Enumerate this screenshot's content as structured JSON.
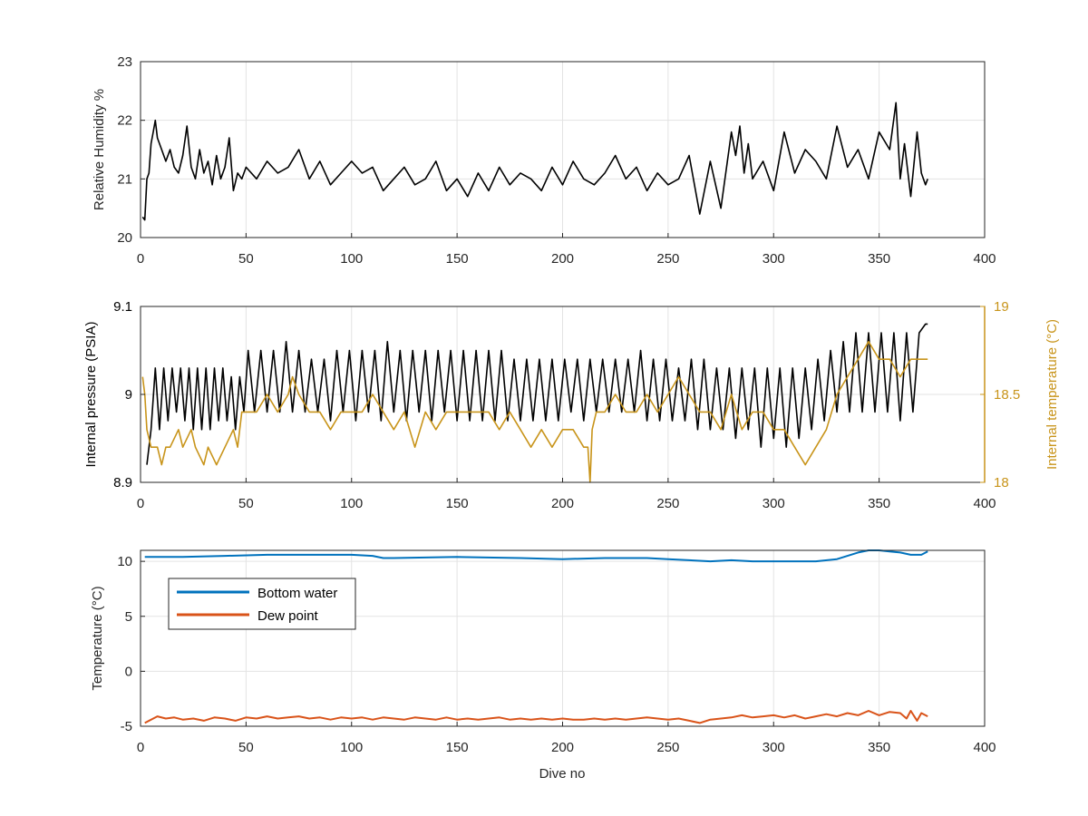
{
  "figure": {
    "background": "#ffffff"
  },
  "chart_data": [
    {
      "type": "line",
      "xlabel": "",
      "ylabel": "Relative Humidity %",
      "xlim": [
        0,
        400
      ],
      "ylim": [
        20,
        23
      ],
      "xticks": [
        0,
        50,
        100,
        150,
        200,
        250,
        300,
        350,
        400
      ],
      "xtick_labels": [
        "0",
        "50",
        "100",
        "150",
        "200",
        "250",
        "300",
        "350",
        "400"
      ],
      "yticks": [
        20,
        21,
        22,
        23
      ],
      "ytick_labels": [
        "20",
        "21",
        "22",
        "23"
      ],
      "grid": true,
      "series": [
        {
          "color": "#000000",
          "x": [
            1,
            2,
            3,
            4,
            5,
            6,
            7,
            8,
            10,
            12,
            14,
            16,
            18,
            20,
            22,
            24,
            26,
            28,
            30,
            32,
            34,
            36,
            38,
            40,
            42,
            44,
            46,
            48,
            50,
            55,
            60,
            65,
            70,
            75,
            80,
            85,
            90,
            95,
            100,
            105,
            110,
            115,
            120,
            125,
            130,
            135,
            140,
            145,
            150,
            155,
            160,
            165,
            170,
            175,
            180,
            185,
            190,
            195,
            200,
            205,
            210,
            215,
            220,
            225,
            230,
            235,
            240,
            245,
            250,
            255,
            260,
            265,
            270,
            275,
            280,
            282,
            284,
            286,
            288,
            290,
            295,
            300,
            305,
            310,
            315,
            320,
            325,
            330,
            335,
            340,
            345,
            350,
            355,
            358,
            360,
            362,
            365,
            368,
            370,
            372,
            373
          ],
          "y": [
            20.35,
            20.3,
            21.0,
            21.1,
            21.6,
            21.8,
            22.0,
            21.7,
            21.5,
            21.3,
            21.5,
            21.2,
            21.1,
            21.4,
            21.9,
            21.2,
            21.0,
            21.5,
            21.1,
            21.3,
            20.9,
            21.4,
            21.0,
            21.2,
            21.7,
            20.8,
            21.1,
            21.0,
            21.2,
            21.0,
            21.3,
            21.1,
            21.2,
            21.5,
            21.0,
            21.3,
            20.9,
            21.1,
            21.3,
            21.1,
            21.2,
            20.8,
            21.0,
            21.2,
            20.9,
            21.0,
            21.3,
            20.8,
            21.0,
            20.7,
            21.1,
            20.8,
            21.2,
            20.9,
            21.1,
            21.0,
            20.8,
            21.2,
            20.9,
            21.3,
            21.0,
            20.9,
            21.1,
            21.4,
            21.0,
            21.2,
            20.8,
            21.1,
            20.9,
            21.0,
            21.4,
            20.4,
            21.3,
            20.5,
            21.8,
            21.4,
            21.9,
            21.1,
            21.6,
            21.0,
            21.3,
            20.8,
            21.8,
            21.1,
            21.5,
            21.3,
            21.0,
            21.9,
            21.2,
            21.5,
            21.0,
            21.8,
            21.5,
            22.3,
            21.0,
            21.6,
            20.7,
            21.8,
            21.1,
            20.9,
            21.0
          ]
        }
      ]
    },
    {
      "type": "line",
      "xlabel": "",
      "ylabel": "Internal pressure (PSIA)",
      "ylabel_right": "Internal temperature (°C)",
      "xlim": [
        0,
        400
      ],
      "ylim": [
        8.9,
        9.1
      ],
      "ylim_right": [
        18,
        19
      ],
      "xticks": [
        0,
        50,
        100,
        150,
        200,
        250,
        300,
        350,
        400
      ],
      "xtick_labels": [
        "0",
        "50",
        "100",
        "150",
        "200",
        "250",
        "300",
        "350",
        "400"
      ],
      "yticks": [
        8.9,
        9.0,
        9.1
      ],
      "ytick_labels": [
        "8.9",
        "9",
        "9.1"
      ],
      "yticks_right": [
        18,
        18.5,
        19
      ],
      "ytick_labels_right": [
        "18",
        "18.5",
        "19"
      ],
      "grid": true,
      "right_axis_color": "#c8941a",
      "series": [
        {
          "axis": "left",
          "color": "#000000",
          "x": [
            3,
            5,
            7,
            9,
            11,
            13,
            15,
            17,
            19,
            21,
            23,
            25,
            27,
            29,
            31,
            33,
            35,
            37,
            39,
            41,
            43,
            45,
            47,
            49,
            51,
            54,
            57,
            60,
            63,
            66,
            69,
            72,
            75,
            78,
            81,
            84,
            87,
            90,
            93,
            96,
            99,
            102,
            105,
            108,
            111,
            114,
            117,
            120,
            123,
            126,
            129,
            132,
            135,
            138,
            141,
            144,
            147,
            150,
            153,
            156,
            159,
            162,
            165,
            168,
            171,
            174,
            177,
            180,
            183,
            186,
            189,
            192,
            195,
            198,
            201,
            204,
            207,
            210,
            213,
            216,
            219,
            222,
            225,
            228,
            231,
            234,
            237,
            240,
            243,
            246,
            249,
            252,
            255,
            258,
            261,
            264,
            267,
            270,
            273,
            276,
            279,
            282,
            285,
            288,
            291,
            294,
            297,
            300,
            303,
            306,
            309,
            312,
            315,
            318,
            321,
            324,
            327,
            330,
            333,
            336,
            339,
            342,
            345,
            348,
            351,
            354,
            357,
            360,
            363,
            366,
            369,
            372,
            373
          ],
          "y": [
            8.92,
            8.96,
            9.03,
            8.96,
            9.03,
            8.97,
            9.03,
            8.98,
            9.03,
            8.97,
            9.03,
            8.96,
            9.03,
            8.96,
            9.03,
            8.96,
            9.03,
            8.97,
            9.03,
            8.97,
            9.02,
            8.96,
            9.02,
            8.98,
            9.05,
            8.98,
            9.05,
            8.98,
            9.05,
            8.98,
            9.06,
            8.98,
            9.05,
            8.98,
            9.04,
            8.98,
            9.04,
            8.97,
            9.05,
            8.98,
            9.05,
            8.97,
            9.05,
            8.98,
            9.05,
            8.97,
            9.06,
            8.98,
            9.05,
            8.97,
            9.05,
            8.98,
            9.05,
            8.97,
            9.05,
            8.98,
            9.05,
            8.97,
            9.05,
            8.97,
            9.05,
            8.97,
            9.05,
            8.97,
            9.05,
            8.97,
            9.04,
            8.97,
            9.04,
            8.97,
            9.04,
            8.97,
            9.04,
            8.97,
            9.04,
            8.98,
            9.04,
            8.97,
            9.04,
            8.98,
            9.04,
            8.98,
            9.04,
            8.98,
            9.04,
            8.98,
            9.05,
            8.97,
            9.04,
            8.97,
            9.04,
            8.97,
            9.03,
            8.97,
            9.04,
            8.96,
            9.04,
            8.96,
            9.03,
            8.96,
            9.03,
            8.95,
            9.03,
            8.96,
            9.03,
            8.94,
            9.03,
            8.95,
            9.03,
            8.94,
            9.03,
            8.95,
            9.03,
            8.96,
            9.04,
            8.97,
            9.05,
            8.98,
            9.06,
            8.98,
            9.07,
            8.98,
            9.07,
            8.98,
            9.07,
            8.98,
            9.07,
            8.97,
            9.07,
            8.98,
            9.07,
            9.08,
            9.08
          ]
        },
        {
          "axis": "right",
          "color": "#c8941a",
          "x": [
            1,
            2,
            3,
            5,
            8,
            10,
            12,
            14,
            18,
            20,
            24,
            26,
            30,
            32,
            36,
            40,
            44,
            46,
            48,
            50,
            55,
            60,
            65,
            70,
            72,
            75,
            80,
            85,
            90,
            95,
            100,
            105,
            110,
            115,
            120,
            125,
            130,
            135,
            140,
            145,
            150,
            155,
            160,
            165,
            170,
            175,
            180,
            185,
            190,
            195,
            200,
            205,
            210,
            212,
            213,
            214,
            216,
            220,
            225,
            230,
            235,
            240,
            245,
            250,
            255,
            260,
            265,
            270,
            275,
            280,
            285,
            290,
            295,
            300,
            305,
            310,
            315,
            320,
            325,
            330,
            335,
            340,
            345,
            350,
            355,
            360,
            365,
            370,
            373
          ],
          "y": [
            18.6,
            18.5,
            18.3,
            18.2,
            18.2,
            18.1,
            18.2,
            18.2,
            18.3,
            18.2,
            18.3,
            18.2,
            18.1,
            18.2,
            18.1,
            18.2,
            18.3,
            18.2,
            18.4,
            18.4,
            18.4,
            18.5,
            18.4,
            18.5,
            18.6,
            18.5,
            18.4,
            18.4,
            18.3,
            18.4,
            18.4,
            18.4,
            18.5,
            18.4,
            18.3,
            18.4,
            18.2,
            18.4,
            18.3,
            18.4,
            18.4,
            18.4,
            18.4,
            18.4,
            18.3,
            18.4,
            18.3,
            18.2,
            18.3,
            18.2,
            18.3,
            18.3,
            18.2,
            18.2,
            18.0,
            18.3,
            18.4,
            18.4,
            18.5,
            18.4,
            18.4,
            18.5,
            18.4,
            18.5,
            18.6,
            18.5,
            18.4,
            18.4,
            18.3,
            18.5,
            18.3,
            18.4,
            18.4,
            18.3,
            18.3,
            18.2,
            18.1,
            18.2,
            18.3,
            18.5,
            18.6,
            18.7,
            18.8,
            18.7,
            18.7,
            18.6,
            18.7,
            18.7,
            18.7
          ]
        }
      ]
    },
    {
      "type": "line",
      "xlabel": "Dive no",
      "ylabel": "Temperature (°C)",
      "xlim": [
        0,
        400
      ],
      "ylim": [
        -5,
        11
      ],
      "xticks": [
        0,
        50,
        100,
        150,
        200,
        250,
        300,
        350,
        400
      ],
      "xtick_labels": [
        "0",
        "50",
        "100",
        "150",
        "200",
        "250",
        "300",
        "350",
        "400"
      ],
      "yticks": [
        -5,
        0,
        5,
        10
      ],
      "ytick_labels": [
        "-5",
        "0",
        "5",
        "10"
      ],
      "grid": true,
      "legend_position": "top-left",
      "series": [
        {
          "name": "Bottom water",
          "color": "#0072bd",
          "x": [
            2,
            20,
            40,
            60,
            80,
            100,
            110,
            115,
            120,
            150,
            180,
            200,
            220,
            240,
            250,
            260,
            270,
            280,
            290,
            300,
            310,
            320,
            330,
            340,
            345,
            350,
            355,
            360,
            365,
            370,
            373
          ],
          "y": [
            10.4,
            10.4,
            10.5,
            10.6,
            10.6,
            10.6,
            10.5,
            10.3,
            10.3,
            10.4,
            10.3,
            10.2,
            10.3,
            10.3,
            10.2,
            10.1,
            10.0,
            10.1,
            10.0,
            10.0,
            10.0,
            10.0,
            10.2,
            10.8,
            11.0,
            11.1,
            10.9,
            10.8,
            10.6,
            10.6,
            10.9
          ]
        },
        {
          "name": "Dew point",
          "color": "#d95319",
          "x": [
            2,
            5,
            8,
            12,
            16,
            20,
            25,
            30,
            35,
            40,
            45,
            50,
            55,
            60,
            65,
            70,
            75,
            80,
            85,
            90,
            95,
            100,
            105,
            110,
            115,
            120,
            125,
            130,
            135,
            140,
            145,
            150,
            155,
            160,
            165,
            170,
            175,
            180,
            185,
            190,
            195,
            200,
            205,
            210,
            215,
            220,
            225,
            230,
            235,
            240,
            245,
            250,
            255,
            260,
            265,
            270,
            275,
            280,
            285,
            290,
            295,
            300,
            305,
            310,
            315,
            320,
            325,
            330,
            335,
            340,
            345,
            350,
            355,
            360,
            363,
            365,
            368,
            370,
            373
          ],
          "y": [
            -4.7,
            -4.4,
            -4.1,
            -4.3,
            -4.2,
            -4.4,
            -4.3,
            -4.5,
            -4.2,
            -4.3,
            -4.5,
            -4.2,
            -4.3,
            -4.1,
            -4.3,
            -4.2,
            -4.1,
            -4.3,
            -4.2,
            -4.4,
            -4.2,
            -4.3,
            -4.2,
            -4.4,
            -4.2,
            -4.3,
            -4.4,
            -4.2,
            -4.3,
            -4.4,
            -4.2,
            -4.4,
            -4.3,
            -4.4,
            -4.3,
            -4.2,
            -4.4,
            -4.3,
            -4.4,
            -4.3,
            -4.4,
            -4.3,
            -4.4,
            -4.4,
            -4.3,
            -4.4,
            -4.3,
            -4.4,
            -4.3,
            -4.2,
            -4.3,
            -4.4,
            -4.3,
            -4.5,
            -4.7,
            -4.4,
            -4.3,
            -4.2,
            -4.0,
            -4.2,
            -4.1,
            -4.0,
            -4.2,
            -4.0,
            -4.3,
            -4.1,
            -3.9,
            -4.1,
            -3.8,
            -4.0,
            -3.6,
            -4.0,
            -3.7,
            -3.8,
            -4.3,
            -3.6,
            -4.5,
            -3.8,
            -4.1
          ]
        }
      ]
    }
  ]
}
